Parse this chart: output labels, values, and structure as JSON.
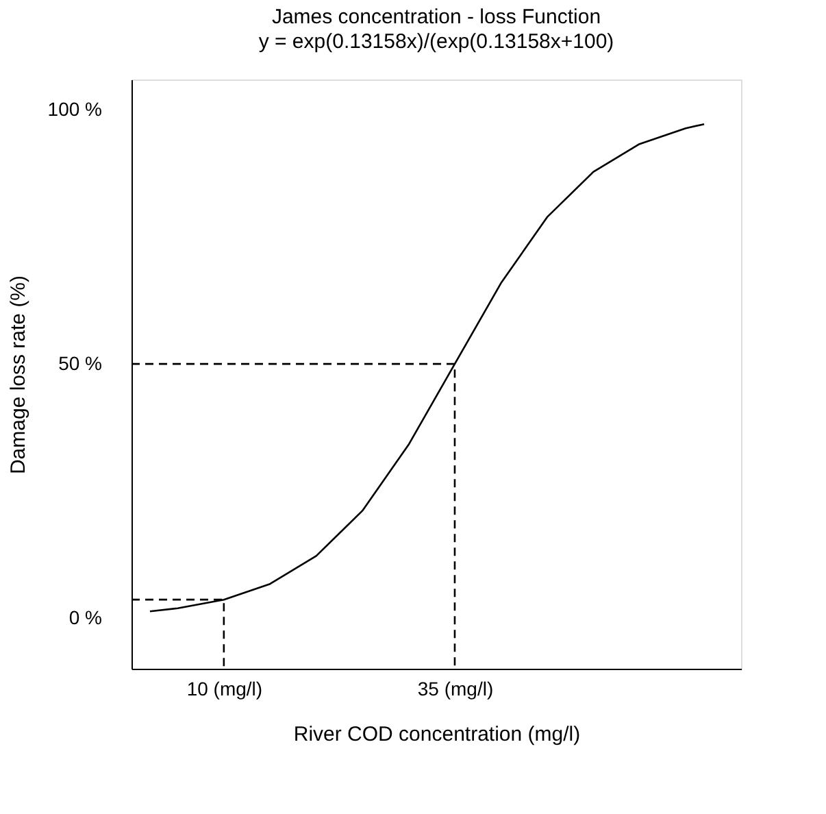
{
  "chart_data": {
    "type": "line",
    "title": "James concentration - loss Function",
    "subtitle": "y = exp(0.13158x)/(exp(0.13158x+100)",
    "xlabel": "River COD concentration (mg/l)",
    "ylabel": "Damage loss rate (%)",
    "xlim": [
      0,
      66
    ],
    "ylim": [
      -10,
      106
    ],
    "xticks": [
      {
        "value": 10,
        "label": "10 (mg/l)"
      },
      {
        "value": 35,
        "label": "35 (mg/l)"
      }
    ],
    "yticks": [
      {
        "value": 0,
        "label": "0 %"
      },
      {
        "value": 50,
        "label": "50 %"
      },
      {
        "value": 100,
        "label": "100 %"
      }
    ],
    "grid": false,
    "marker": "none",
    "series": [
      {
        "color": "#000000",
        "line_style": "solid",
        "x": [
          2,
          5,
          10,
          15,
          20,
          25,
          30,
          35,
          40,
          45,
          50,
          55,
          60,
          62
        ],
        "values": [
          1.3,
          1.9,
          3.6,
          6.7,
          12.2,
          21.1,
          34.1,
          50,
          65.9,
          78.9,
          87.8,
          93.3,
          96.4,
          97.2
        ]
      },
      {
        "color": "#000000",
        "line_style": "dashed",
        "x": [
          0,
          10,
          10
        ],
        "values": [
          3.6,
          3.6,
          -10
        ]
      },
      {
        "color": "#000000",
        "line_style": "dashed",
        "x": [
          0,
          35,
          35
        ],
        "values": [
          50,
          50,
          -10
        ]
      }
    ]
  }
}
